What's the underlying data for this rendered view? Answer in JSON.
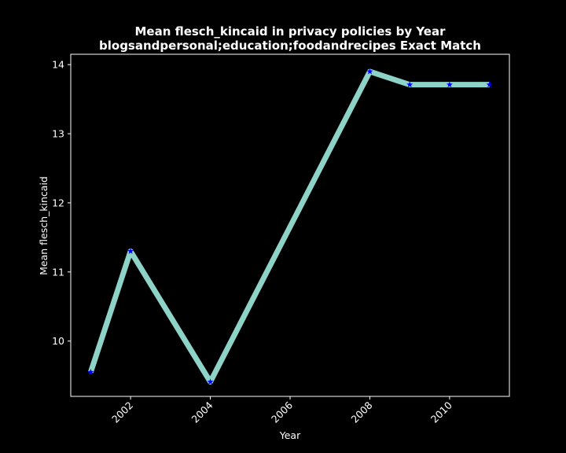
{
  "chart_data": {
    "type": "line",
    "title_line1": "Mean flesch_kincaid in privacy policies by Year",
    "title_line2": "blogsandpersonal;education;foodandrecipes Exact Match",
    "xlabel": "Year",
    "ylabel": "Mean flesch_kincaid",
    "x": [
      2001,
      2002,
      2004,
      2008,
      2009,
      2010,
      2011
    ],
    "y": [
      9.55,
      11.3,
      9.41,
      13.9,
      13.71,
      13.71,
      13.71
    ],
    "xlim": [
      2000.5,
      2011.5
    ],
    "ylim": [
      9.2,
      14.15
    ],
    "xticks": [
      2002,
      2004,
      2006,
      2008,
      2010
    ],
    "yticks": [
      10,
      11,
      12,
      13,
      14
    ],
    "line_color": "#8dd3c7",
    "marker_color": "#0000ff",
    "marker": "star",
    "background": "#000000",
    "axis_color": "#ffffff",
    "grid": false,
    "legend": false
  }
}
